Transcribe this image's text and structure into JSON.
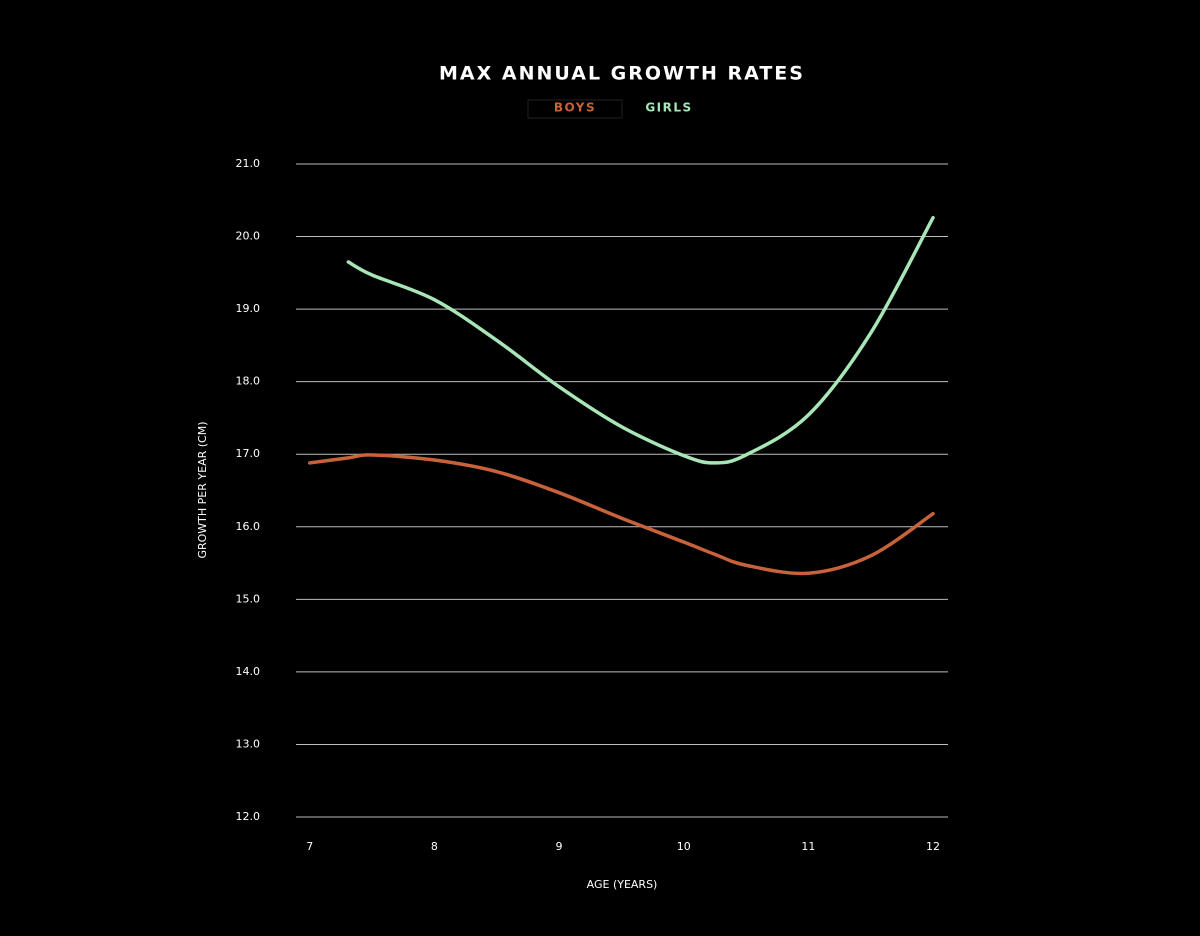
{
  "chart_data": {
    "type": "line",
    "title": "MAX ANNUAL GROWTH RATES",
    "x": [
      7,
      7.31,
      7.5,
      8,
      8.5,
      9,
      9.5,
      10,
      10.25,
      10.5,
      11,
      11.5,
      12
    ],
    "series": [
      {
        "name": "BOYS",
        "color": "#c8623a",
        "values": [
          16.88,
          16.95,
          16.99,
          16.92,
          16.76,
          16.47,
          16.12,
          15.79,
          15.62,
          15.47,
          15.36,
          15.6,
          16.18
        ]
      },
      {
        "name": "GIRLS",
        "color": "#a8e6b8",
        "values": [
          null,
          19.65,
          19.47,
          19.13,
          18.57,
          17.93,
          17.38,
          16.98,
          16.88,
          16.99,
          17.54,
          18.67,
          20.26
        ]
      }
    ],
    "xlim": [
      6.89,
      12.12
    ],
    "xticks": [
      7,
      8,
      9,
      10,
      11,
      12
    ],
    "ylim": [
      12,
      21
    ],
    "yticks": [
      {
        "value": 12,
        "label": "12.0"
      },
      {
        "value": 13,
        "label": "13.0"
      },
      {
        "value": 14,
        "label": "14.0"
      },
      {
        "value": 15,
        "label": "15.0"
      },
      {
        "value": 16,
        "label": "16.0"
      },
      {
        "value": 17,
        "label": "17.0"
      },
      {
        "value": 18,
        "label": "18.0"
      },
      {
        "value": 19,
        "label": "19.0"
      },
      {
        "value": 20,
        "label": "20.0"
      },
      {
        "value": 21,
        "label": "21.0"
      }
    ],
    "xlabel": "AGE (YEARS)",
    "ylabel": "GROWTH PER YEAR (CM)",
    "grid": true,
    "legend": "top"
  }
}
